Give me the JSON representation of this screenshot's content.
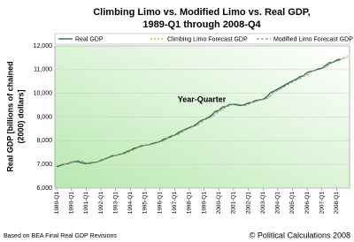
{
  "chart_data": {
    "type": "line",
    "title": [
      "Climbing Limo vs. Modified Limo vs. Real GDP,",
      "1989-Q1 through 2008-Q4"
    ],
    "x_label": "Year-Quarter",
    "y_label": [
      "Real GDP [billions of chained",
      "(2000) dollars]"
    ],
    "footer_left": "Based on BEA Final Real GDP Revisions",
    "footer_right": "© Political Calculations 2008",
    "categories": [
      "1989-Q1",
      null,
      null,
      null,
      "1990-Q1",
      null,
      null,
      null,
      "1991-Q1",
      null,
      null,
      null,
      "1992-Q1",
      null,
      null,
      null,
      "1993-Q1",
      null,
      null,
      null,
      "1994-Q1",
      null,
      null,
      null,
      "1995-Q1",
      null,
      null,
      null,
      "1996-Q1",
      null,
      null,
      null,
      "1997-Q1",
      null,
      null,
      null,
      "1998-Q1",
      null,
      null,
      null,
      "1999-Q1",
      null,
      null,
      null,
      "2000-Q1",
      null,
      null,
      null,
      "2001-Q1",
      null,
      null,
      null,
      "2002-Q1",
      null,
      null,
      null,
      "2003-Q1",
      null,
      null,
      null,
      "2004-Q1",
      null,
      null,
      null,
      "2005-Q1",
      null,
      null,
      null,
      "2006-Q1",
      null,
      null,
      null,
      "2007-Q1",
      null,
      null,
      null,
      "2008-Q1",
      null,
      null,
      null
    ],
    "series": [
      {
        "name": "Real GDP",
        "color": "#1d6b3c",
        "dash": "none",
        "values": [
          6900,
          6960,
          7010,
          7030,
          7100,
          7120,
          7110,
          7060,
          7030,
          7060,
          7080,
          7100,
          7170,
          7230,
          7290,
          7360,
          7380,
          7420,
          7460,
          7540,
          7600,
          7680,
          7720,
          7790,
          7810,
          7830,
          7880,
          7920,
          7960,
          8060,
          8110,
          8190,
          8230,
          8340,
          8420,
          8490,
          8560,
          8610,
          8710,
          8840,
          8900,
          8970,
          9070,
          9230,
          9280,
          9420,
          9450,
          9530,
          9530,
          9510,
          9480,
          9520,
          9590,
          9620,
          9700,
          9720,
          9750,
          9850,
          10020,
          10100,
          10180,
          10270,
          10360,
          10440,
          10530,
          10590,
          10700,
          10740,
          10880,
          10930,
          10960,
          11030,
          11060,
          11180,
          11290,
          11310,
          11400,
          11450,
          null,
          null
        ]
      },
      {
        "name": "Climbing Limo Forecast GDP",
        "color": "#f0a030",
        "dash": "2,2",
        "values": [
          null,
          6940,
          7000,
          7060,
          7080,
          7150,
          7170,
          7120,
          7050,
          7010,
          7090,
          7120,
          7130,
          7230,
          7280,
          7330,
          7410,
          7410,
          7450,
          7490,
          7580,
          7630,
          7720,
          7760,
          7830,
          7830,
          7850,
          7920,
          7960,
          7990,
          8110,
          8150,
          8240,
          8270,
          8390,
          8470,
          8530,
          8600,
          8650,
          8760,
          8900,
          8940,
          9010,
          9120,
          9290,
          9320,
          9470,
          9470,
          9560,
          9550,
          9520,
          9470,
          9540,
          9620,
          9640,
          9730,
          9740,
          9770,
          9890,
          10080,
          10130,
          10220,
          10310,
          10400,
          10490,
          10570,
          10620,
          10730,
          10770,
          10920,
          10960,
          10980,
          11060,
          11090,
          11220,
          11330,
          11340,
          11400,
          11480,
          11530
        ]
      },
      {
        "name": "Modified Limo Forecast GDP",
        "color": "#7f8fa8",
        "dash": "3,2",
        "values": [
          null,
          6930,
          6990,
          7050,
          7060,
          7140,
          7150,
          7130,
          7070,
          7030,
          7080,
          7110,
          7140,
          7210,
          7270,
          7320,
          7390,
          7400,
          7440,
          7480,
          7570,
          7620,
          7700,
          7750,
          7810,
          7830,
          7850,
          7900,
          7950,
          7990,
          8090,
          8140,
          8220,
          8270,
          8370,
          8450,
          8520,
          8590,
          8650,
          8740,
          8870,
          8930,
          9010,
          9110,
          9260,
          9310,
          9450,
          9470,
          9540,
          9540,
          9520,
          9490,
          9540,
          9610,
          9640,
          9720,
          9740,
          9780,
          9880,
          10050,
          10120,
          10210,
          10300,
          10390,
          10470,
          10560,
          10620,
          10720,
          10770,
          10900,
          10960,
          10990,
          11060,
          11100,
          11220,
          11320,
          11350,
          11420,
          11500,
          11570
        ]
      }
    ],
    "ylim": [
      6000,
      12000
    ],
    "yticks": [
      {
        "value": 6000,
        "label": "6,000"
      },
      {
        "value": 7000,
        "label": "7,000"
      },
      {
        "value": 8000,
        "label": "8,000"
      },
      {
        "value": 9000,
        "label": "9,000"
      },
      {
        "value": 10000,
        "label": "10,000"
      },
      {
        "value": 11000,
        "label": "11,000"
      },
      {
        "value": 12000,
        "label": "12,000"
      }
    ],
    "grid": true
  }
}
